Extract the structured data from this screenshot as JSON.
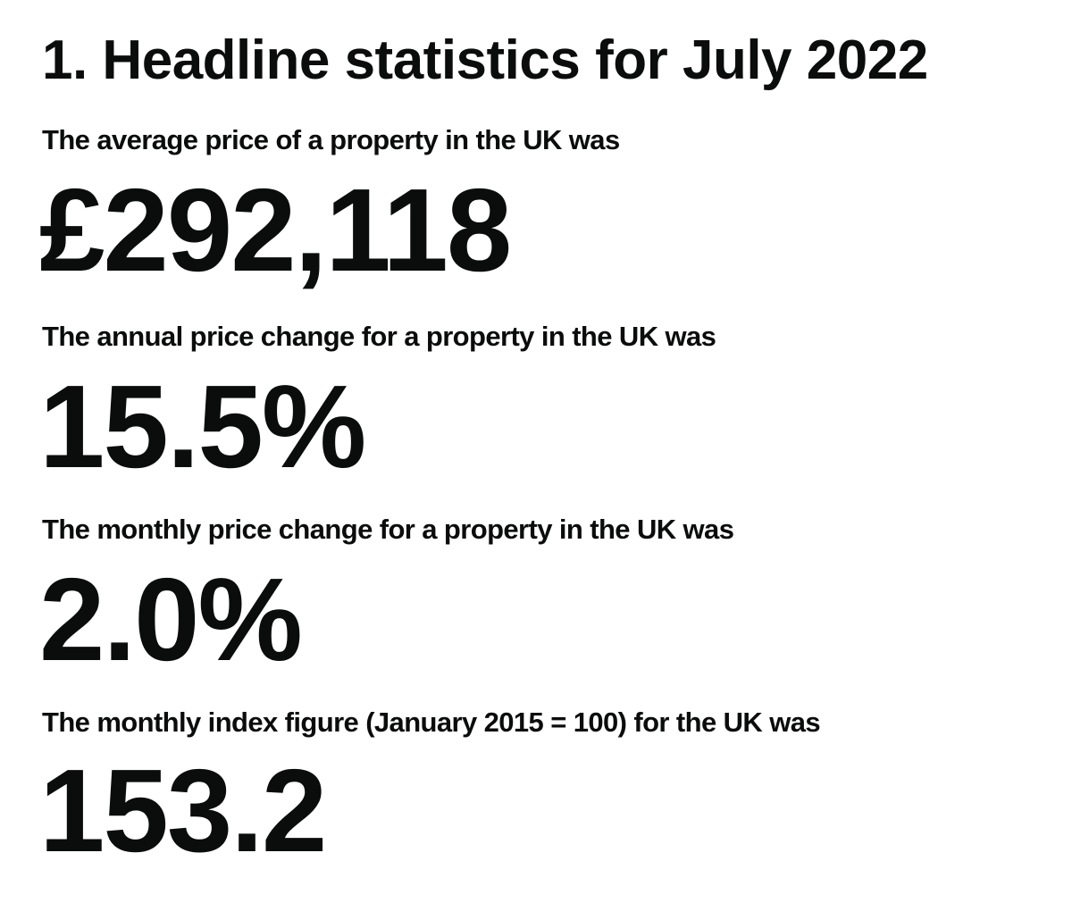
{
  "heading": "1. Headline statistics for July 2022",
  "stats": [
    {
      "label": "The average price of a property in the UK was",
      "value": "£292,118"
    },
    {
      "label": "The annual price change for a property in the UK was",
      "value": "15.5%"
    },
    {
      "label": "The monthly price change for a property in the UK was",
      "value": "2.0%"
    },
    {
      "label": "The monthly index figure (January 2015 = 100) for the UK was",
      "value": "153.2"
    }
  ]
}
